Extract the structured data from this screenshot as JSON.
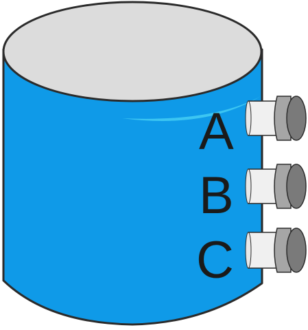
{
  "diagram": {
    "subject": "tank-with-three-outlets",
    "outlets": [
      {
        "id": "A",
        "label": "A"
      },
      {
        "id": "B",
        "label": "B"
      },
      {
        "id": "C",
        "label": "C"
      }
    ]
  },
  "colors": {
    "tank_body": "#0f9ae8",
    "tank_top": "#dcdcdc",
    "highlight": "#3cc6f2",
    "outline": "#2b2b2b",
    "pipe_light": "#f0f0f0",
    "pipe_mid": "#a6a6a6",
    "pipe_dark": "#7a7a7a"
  }
}
